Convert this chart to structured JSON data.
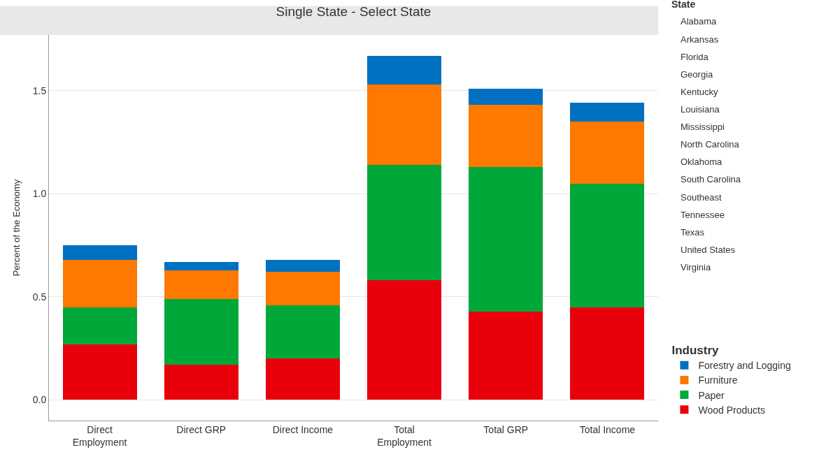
{
  "chart_data": {
    "type": "bar",
    "title": "Single State - Select State",
    "ylabel": "Percent of the Economy",
    "legend_title": "Industry",
    "categories": [
      "Direct\nEmployment",
      "Direct GRP",
      "Direct Income",
      "Total\nEmployment",
      "Total GRP",
      "Total Income"
    ],
    "stacked": true,
    "series": [
      {
        "name": "Wood Products",
        "color": "#e8000b",
        "values": [
          0.27,
          0.17,
          0.2,
          0.58,
          0.43,
          0.45
        ]
      },
      {
        "name": "Paper",
        "color": "#00a83a",
        "values": [
          0.18,
          0.32,
          0.26,
          0.56,
          0.7,
          0.6
        ]
      },
      {
        "name": "Furniture",
        "color": "#ff7800",
        "values": [
          0.23,
          0.14,
          0.16,
          0.39,
          0.3,
          0.3
        ]
      },
      {
        "name": "Forestry and Logging",
        "color": "#0070c0",
        "values": [
          0.07,
          0.04,
          0.06,
          0.14,
          0.08,
          0.09
        ]
      }
    ],
    "ylim": [
      -0.1,
      1.77
    ],
    "yticks": [
      {
        "value": 0,
        "label": "0.0"
      },
      0.5,
      {
        "value": 1,
        "label": "1.0"
      },
      1.5
    ],
    "grid": "y",
    "legend": "bottom right",
    "annotations": [
      "State",
      "Alabama",
      "Arkansas",
      "Florida",
      "Georgia",
      "Kentucky",
      "Louisiana",
      "Mississippi",
      "North Carolina",
      "Oklahoma",
      "South Carolina",
      "Southeast",
      "Tennessee",
      "Texas",
      "United States",
      "Virginia"
    ]
  }
}
